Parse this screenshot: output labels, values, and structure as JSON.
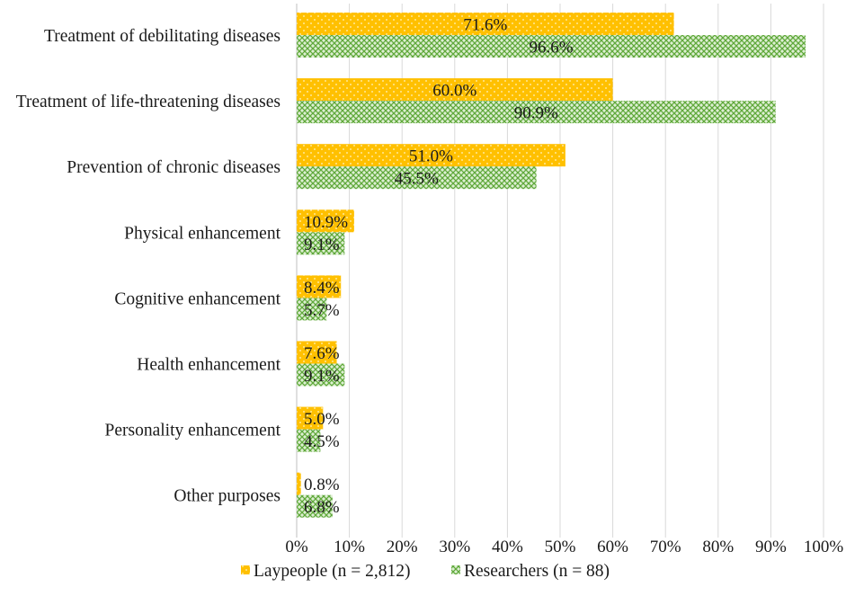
{
  "chart_data": {
    "type": "bar",
    "orientation": "horizontal",
    "title": "",
    "xlabel": "",
    "ylabel": "",
    "xlim": [
      0,
      100
    ],
    "x_ticks": [
      "0%",
      "10%",
      "20%",
      "30%",
      "40%",
      "50%",
      "60%",
      "70%",
      "80%",
      "90%",
      "100%"
    ],
    "grid": true,
    "legend_position": "bottom",
    "categories": [
      "Treatment of debilitating diseases",
      "Treatment of life-threatening diseases",
      "Prevention of chronic diseases",
      "Physical enhancement",
      "Cognitive enhancement",
      "Health enhancement",
      "Personality enhancement",
      "Other purposes"
    ],
    "series": [
      {
        "name": "Laypeople (n = 2,812)",
        "color": "#FFC000",
        "pattern": "dots",
        "values": [
          71.6,
          60.0,
          51.0,
          10.9,
          8.4,
          7.6,
          5.0,
          0.8
        ],
        "labels": [
          "71.6%",
          "60.0%",
          "51.0%",
          "10.9%",
          "8.4%",
          "7.6%",
          "5.0%",
          "0.8%"
        ]
      },
      {
        "name": "Researchers (n = 88)",
        "color": "#70AD47",
        "pattern": "crosshatch",
        "values": [
          96.6,
          90.9,
          45.5,
          9.1,
          5.7,
          9.1,
          4.5,
          6.8
        ],
        "labels": [
          "96.6%",
          "90.9%",
          "45.5%",
          "9.1%",
          "5.7%",
          "9.1%",
          "4.5%",
          "6.8%"
        ]
      }
    ]
  }
}
